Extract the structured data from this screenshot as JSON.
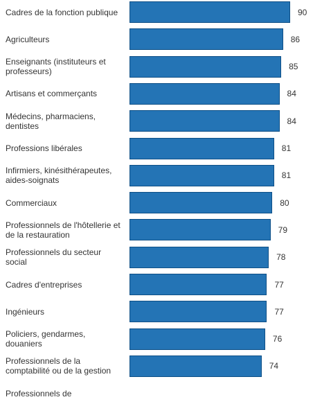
{
  "chart_data": {
    "type": "bar",
    "orientation": "horizontal",
    "categories": [
      "Cadres de la fonction publique",
      "Agriculteurs",
      "Enseignants (instituteurs et professeurs)",
      "Artisans et commerçants",
      "Médecins, pharmaciens, dentistes",
      "Professions libérales",
      "Infirmiers, kinésithérapeutes, aides-soignats",
      "Commerciaux",
      "Professionnels de l'hôtellerie et de la restauration",
      "Professionnels du secteur social",
      "Cadres d'entreprises",
      "Ingénieurs",
      "Policiers, gendarmes, douaniers",
      "Professionnels de la comptabilité ou de la gestion",
      "Professionnels de"
    ],
    "values": [
      90,
      86,
      85,
      84,
      84,
      81,
      81,
      80,
      79,
      78,
      77,
      77,
      76,
      74,
      null
    ],
    "colors": {
      "bar": "#2474b5",
      "bar_border": "#0e4f86",
      "text": "#333333"
    },
    "grid": false,
    "legend": "none"
  }
}
